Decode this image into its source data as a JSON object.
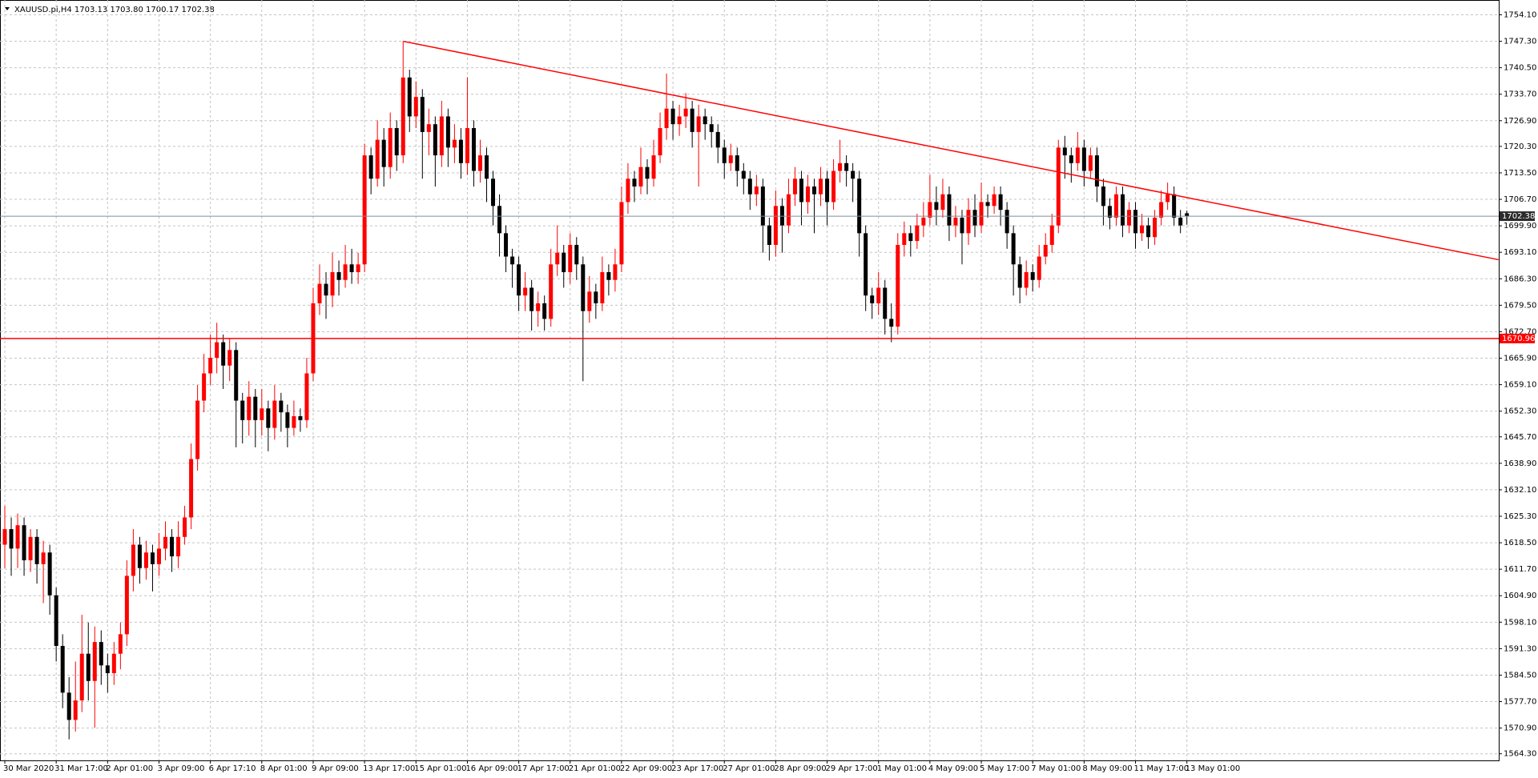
{
  "chart_data": {
    "type": "candlestick",
    "title": "XAUUSD.pi,H4  1703.13 1703.80 1700.17 1702.38",
    "up_color": "#ff0000",
    "down_color": "#000000",
    "grid": true,
    "ylim": [
      1562.6,
      1757.9
    ],
    "yticks": [
      {
        "value": 1754.1,
        "label": "1754.10"
      },
      {
        "value": 1747.3,
        "label": "1747.30"
      },
      {
        "value": 1740.5,
        "label": "1740.50"
      },
      {
        "value": 1733.7,
        "label": "1733.70"
      },
      {
        "value": 1726.9,
        "label": "1726.90"
      },
      {
        "value": 1720.3,
        "label": "1720.30"
      },
      {
        "value": 1713.5,
        "label": "1713.50"
      },
      {
        "value": 1706.7,
        "label": "1706.70"
      },
      {
        "value": 1699.9,
        "label": "1699.90"
      },
      {
        "value": 1693.1,
        "label": "1693.10"
      },
      {
        "value": 1686.3,
        "label": "1686.30"
      },
      {
        "value": 1679.5,
        "label": "1679.50"
      },
      {
        "value": 1672.7,
        "label": "1672.70"
      },
      {
        "value": 1665.9,
        "label": "1665.90"
      },
      {
        "value": 1659.1,
        "label": "1659.10"
      },
      {
        "value": 1652.3,
        "label": "1652.30"
      },
      {
        "value": 1645.7,
        "label": "1645.70"
      },
      {
        "value": 1638.9,
        "label": "1638.90"
      },
      {
        "value": 1632.1,
        "label": "1632.10"
      },
      {
        "value": 1625.3,
        "label": "1625.30"
      },
      {
        "value": 1618.5,
        "label": "1618.50"
      },
      {
        "value": 1611.7,
        "label": "1611.70"
      },
      {
        "value": 1604.9,
        "label": "1604.90"
      },
      {
        "value": 1598.1,
        "label": "1598.10"
      },
      {
        "value": 1591.3,
        "label": "1591.30"
      },
      {
        "value": 1584.5,
        "label": "1584.50"
      },
      {
        "value": 1577.7,
        "label": "1577.70"
      },
      {
        "value": 1570.9,
        "label": "1570.90"
      },
      {
        "value": 1564.3,
        "label": "1564.30"
      }
    ],
    "categories": [
      "30 Mar 2020",
      null,
      null,
      null,
      null,
      null,
      null,
      null,
      "31 Mar 17:00",
      null,
      null,
      null,
      null,
      null,
      null,
      null,
      "2 Apr 01:00",
      null,
      null,
      null,
      null,
      null,
      null,
      null,
      "3 Apr 09:00",
      null,
      null,
      null,
      null,
      null,
      null,
      null,
      "6 Apr 17:10",
      null,
      null,
      null,
      null,
      null,
      null,
      null,
      "8 Apr 01:00",
      null,
      null,
      null,
      null,
      null,
      null,
      null,
      "9 Apr 09:00",
      null,
      null,
      null,
      null,
      null,
      null,
      null,
      "13 Apr 17:00",
      null,
      null,
      null,
      null,
      null,
      null,
      null,
      "15 Apr 01:00",
      null,
      null,
      null,
      null,
      null,
      null,
      null,
      "16 Apr 09:00",
      null,
      null,
      null,
      null,
      null,
      null,
      null,
      "17 Apr 17:00",
      null,
      null,
      null,
      null,
      null,
      null,
      null,
      "21 Apr 01:00",
      null,
      null,
      null,
      null,
      null,
      null,
      null,
      "22 Apr 09:00",
      null,
      null,
      null,
      null,
      null,
      null,
      null,
      "23 Apr 17:00",
      null,
      null,
      null,
      null,
      null,
      null,
      null,
      "27 Apr 01:00",
      null,
      null,
      null,
      null,
      null,
      null,
      null,
      "28 Apr 09:00",
      null,
      null,
      null,
      null,
      null,
      null,
      null,
      "29 Apr 17:00",
      null,
      null,
      null,
      null,
      null,
      null,
      null,
      "1 May 01:00",
      null,
      null,
      null,
      null,
      null,
      null,
      null,
      "4 May 09:00",
      null,
      null,
      null,
      null,
      null,
      null,
      null,
      "5 May 17:00",
      null,
      null,
      null,
      null,
      null,
      null,
      null,
      "7 May 01:00",
      null,
      null,
      null,
      null,
      null,
      null,
      null,
      "8 May 09:00",
      null,
      null,
      null,
      null,
      null,
      null,
      null,
      "11 May 17:00",
      null,
      null,
      null,
      null,
      null,
      null,
      null,
      "13 May 01:00"
    ],
    "candles": [
      [
        1618,
        1628,
        1612,
        1622
      ],
      [
        1622,
        1625,
        1610,
        1617
      ],
      [
        1617,
        1626,
        1612,
        1623
      ],
      [
        1623,
        1625,
        1610,
        1614
      ],
      [
        1614,
        1622,
        1611,
        1620
      ],
      [
        1620,
        1622,
        1608,
        1613
      ],
      [
        1613,
        1619,
        1603,
        1616
      ],
      [
        1616,
        1618,
        1600,
        1605
      ],
      [
        1605,
        1607,
        1588,
        1592
      ],
      [
        1592,
        1595,
        1576,
        1580
      ],
      [
        1580,
        1584,
        1568,
        1573
      ],
      [
        1573,
        1588,
        1570,
        1578
      ],
      [
        1578,
        1600,
        1575,
        1590
      ],
      [
        1590,
        1598,
        1578,
        1583
      ],
      [
        1583,
        1597,
        1571,
        1593
      ],
      [
        1593,
        1596,
        1582,
        1587
      ],
      [
        1587,
        1590,
        1580,
        1585
      ],
      [
        1585,
        1593,
        1582,
        1590
      ],
      [
        1590,
        1598,
        1586,
        1595
      ],
      [
        1595,
        1614,
        1592,
        1610
      ],
      [
        1610,
        1622,
        1606,
        1618
      ],
      [
        1618,
        1620,
        1608,
        1612
      ],
      [
        1612,
        1619,
        1609,
        1616
      ],
      [
        1616,
        1618,
        1606,
        1613
      ],
      [
        1613,
        1621,
        1610,
        1617
      ],
      [
        1617,
        1624,
        1614,
        1620
      ],
      [
        1620,
        1622,
        1611,
        1615
      ],
      [
        1615,
        1624,
        1612,
        1620
      ],
      [
        1620,
        1628,
        1618,
        1625
      ],
      [
        1625,
        1644,
        1622,
        1640
      ],
      [
        1640,
        1659,
        1637,
        1655
      ],
      [
        1655,
        1667,
        1652,
        1662
      ],
      [
        1662,
        1672,
        1659,
        1666
      ],
      [
        1666,
        1675,
        1662,
        1670
      ],
      [
        1670,
        1672,
        1658,
        1664
      ],
      [
        1664,
        1671,
        1660,
        1668
      ],
      [
        1668,
        1670,
        1643,
        1655
      ],
      [
        1655,
        1657,
        1644,
        1650
      ],
      [
        1650,
        1660,
        1646,
        1656
      ],
      [
        1656,
        1658,
        1643,
        1650
      ],
      [
        1650,
        1658,
        1646,
        1653
      ],
      [
        1653,
        1655,
        1642,
        1648
      ],
      [
        1648,
        1659,
        1645,
        1655
      ],
      [
        1655,
        1657,
        1647,
        1652
      ],
      [
        1652,
        1654,
        1643,
        1648
      ],
      [
        1648,
        1655,
        1646,
        1651
      ],
      [
        1651,
        1653,
        1647,
        1650
      ],
      [
        1650,
        1666,
        1648,
        1662
      ],
      [
        1662,
        1684,
        1660,
        1680
      ],
      [
        1680,
        1690,
        1677,
        1685
      ],
      [
        1685,
        1688,
        1676,
        1682
      ],
      [
        1682,
        1693,
        1679,
        1688
      ],
      [
        1688,
        1691,
        1682,
        1686
      ],
      [
        1686,
        1695,
        1684,
        1690
      ],
      [
        1690,
        1694,
        1685,
        1688
      ],
      [
        1688,
        1693,
        1685,
        1690
      ],
      [
        1690,
        1721,
        1688,
        1718
      ],
      [
        1718,
        1720,
        1708,
        1712
      ],
      [
        1712,
        1727,
        1710,
        1722
      ],
      [
        1722,
        1725,
        1710,
        1715
      ],
      [
        1715,
        1729,
        1712,
        1725
      ],
      [
        1725,
        1727,
        1714,
        1718
      ],
      [
        1718,
        1747.3,
        1716,
        1738
      ],
      [
        1738,
        1740,
        1724,
        1728
      ],
      [
        1728,
        1737,
        1725,
        1733
      ],
      [
        1733,
        1735,
        1712,
        1724
      ],
      [
        1724,
        1730,
        1718,
        1726
      ],
      [
        1726,
        1728,
        1710,
        1718
      ],
      [
        1718,
        1732,
        1715,
        1728
      ],
      [
        1728,
        1730,
        1715,
        1720
      ],
      [
        1720,
        1726,
        1716,
        1722
      ],
      [
        1722,
        1725,
        1712,
        1716
      ],
      [
        1716,
        1738,
        1713,
        1725
      ],
      [
        1725,
        1727,
        1710,
        1714
      ],
      [
        1714,
        1722,
        1711,
        1718
      ],
      [
        1718,
        1720,
        1706,
        1712
      ],
      [
        1712,
        1714,
        1700,
        1705
      ],
      [
        1705,
        1708,
        1692,
        1698
      ],
      [
        1698,
        1700,
        1688,
        1692
      ],
      [
        1692,
        1694,
        1684,
        1690
      ],
      [
        1690,
        1692,
        1678,
        1682
      ],
      [
        1682,
        1688,
        1678,
        1684
      ],
      [
        1684,
        1686,
        1673,
        1678
      ],
      [
        1678,
        1683,
        1674,
        1680
      ],
      [
        1680,
        1682,
        1673,
        1676
      ],
      [
        1676,
        1694,
        1674,
        1690
      ],
      [
        1690,
        1700,
        1687,
        1693
      ],
      [
        1693,
        1695,
        1684,
        1688
      ],
      [
        1688,
        1698,
        1685,
        1695
      ],
      [
        1695,
        1697,
        1686,
        1690
      ],
      [
        1690,
        1692,
        1660,
        1678
      ],
      [
        1678,
        1687,
        1675,
        1683
      ],
      [
        1683,
        1685,
        1676,
        1680
      ],
      [
        1680,
        1692,
        1678,
        1688
      ],
      [
        1688,
        1690,
        1682,
        1686
      ],
      [
        1686,
        1694,
        1683,
        1690
      ],
      [
        1690,
        1710,
        1688,
        1706
      ],
      [
        1706,
        1716,
        1703,
        1712
      ],
      [
        1712,
        1714,
        1706,
        1710
      ],
      [
        1710,
        1720,
        1708,
        1715
      ],
      [
        1715,
        1717,
        1708,
        1712
      ],
      [
        1712,
        1722,
        1710,
        1718
      ],
      [
        1718,
        1729,
        1716,
        1725
      ],
      [
        1725,
        1739,
        1722,
        1730
      ],
      [
        1730,
        1732,
        1722,
        1726
      ],
      [
        1726,
        1731,
        1723,
        1728
      ],
      [
        1728,
        1734,
        1725,
        1730
      ],
      [
        1730,
        1732,
        1720,
        1724
      ],
      [
        1724,
        1731,
        1710,
        1728
      ],
      [
        1728,
        1730,
        1722,
        1726
      ],
      [
        1726,
        1728,
        1720,
        1724
      ],
      [
        1724,
        1726,
        1716,
        1720
      ],
      [
        1720,
        1722,
        1712,
        1716
      ],
      [
        1716,
        1721,
        1714,
        1718
      ],
      [
        1718,
        1720,
        1710,
        1714
      ],
      [
        1714,
        1716,
        1708,
        1712
      ],
      [
        1712,
        1714,
        1704,
        1708
      ],
      [
        1708,
        1713,
        1705,
        1710
      ],
      [
        1710,
        1712,
        1693,
        1700
      ],
      [
        1700,
        1702,
        1691,
        1695
      ],
      [
        1695,
        1709,
        1692,
        1705
      ],
      [
        1705,
        1707,
        1693,
        1700
      ],
      [
        1700,
        1712,
        1698,
        1708
      ],
      [
        1708,
        1715,
        1705,
        1712
      ],
      [
        1712,
        1714,
        1700,
        1706
      ],
      [
        1706,
        1713,
        1703,
        1710
      ],
      [
        1710,
        1712,
        1698,
        1708
      ],
      [
        1708,
        1715,
        1705,
        1712
      ],
      [
        1712,
        1714,
        1700,
        1706
      ],
      [
        1706,
        1717,
        1704,
        1714
      ],
      [
        1714,
        1722,
        1711,
        1716
      ],
      [
        1716,
        1718,
        1710,
        1714
      ],
      [
        1714,
        1716,
        1706,
        1712
      ],
      [
        1712,
        1714,
        1692,
        1698
      ],
      [
        1698,
        1700,
        1678,
        1682
      ],
      [
        1682,
        1684,
        1676,
        1680
      ],
      [
        1680,
        1688,
        1677,
        1684
      ],
      [
        1684,
        1686,
        1672,
        1676
      ],
      [
        1676,
        1680,
        1670,
        1674
      ],
      [
        1674,
        1698,
        1672,
        1695
      ],
      [
        1695,
        1701,
        1692,
        1698
      ],
      [
        1698,
        1700,
        1692,
        1696
      ],
      [
        1696,
        1703,
        1694,
        1700
      ],
      [
        1700,
        1706,
        1697,
        1702
      ],
      [
        1702,
        1713,
        1700,
        1706
      ],
      [
        1706,
        1710,
        1700,
        1704
      ],
      [
        1704,
        1712,
        1702,
        1708
      ],
      [
        1708,
        1710,
        1696,
        1700
      ],
      [
        1700,
        1705,
        1697,
        1702
      ],
      [
        1702,
        1704,
        1690,
        1698
      ],
      [
        1698,
        1707,
        1695,
        1704
      ],
      [
        1704,
        1708,
        1697,
        1700
      ],
      [
        1700,
        1711,
        1698,
        1706
      ],
      [
        1706,
        1708,
        1702,
        1705
      ],
      [
        1705,
        1710,
        1703,
        1708
      ],
      [
        1708,
        1710,
        1700,
        1704
      ],
      [
        1704,
        1706,
        1694,
        1698
      ],
      [
        1698,
        1700,
        1682,
        1690
      ],
      [
        1690,
        1692,
        1680,
        1684
      ],
      [
        1684,
        1691,
        1682,
        1688
      ],
      [
        1688,
        1690,
        1683,
        1686
      ],
      [
        1686,
        1695,
        1684,
        1692
      ],
      [
        1692,
        1698,
        1690,
        1695
      ],
      [
        1695,
        1703,
        1693,
        1700
      ],
      [
        1700,
        1722,
        1698,
        1720
      ],
      [
        1720,
        1723,
        1712,
        1718
      ],
      [
        1718,
        1720,
        1711,
        1716
      ],
      [
        1716,
        1724,
        1714,
        1720
      ],
      [
        1720,
        1722,
        1710,
        1714
      ],
      [
        1714,
        1720,
        1712,
        1718
      ],
      [
        1718,
        1720,
        1706,
        1710
      ],
      [
        1710,
        1712,
        1700,
        1705
      ],
      [
        1705,
        1707,
        1699,
        1702
      ],
      [
        1702,
        1710,
        1700,
        1708
      ],
      [
        1708,
        1710,
        1697,
        1700
      ],
      [
        1700,
        1706,
        1698,
        1704
      ],
      [
        1704,
        1706,
        1694,
        1698
      ],
      [
        1698,
        1703,
        1696,
        1700
      ],
      [
        1700,
        1702,
        1694,
        1697
      ],
      [
        1697,
        1704,
        1695,
        1702
      ],
      [
        1702,
        1709,
        1700,
        1706
      ],
      [
        1706,
        1711,
        1704,
        1708
      ],
      [
        1708,
        1710,
        1700,
        1702
      ],
      [
        1702,
        1704,
        1698,
        1700
      ],
      [
        1703.13,
        1703.8,
        1700.17,
        1702.38
      ]
    ],
    "last_price": 1702.38,
    "last_price_color": "#7f8c9a",
    "level": 1670.96,
    "level_color": "#ff0000",
    "trendline": {
      "x": [
        62,
        232.5
      ],
      "y": [
        1747.3,
        1691.2
      ],
      "color": "#ff0000"
    }
  }
}
